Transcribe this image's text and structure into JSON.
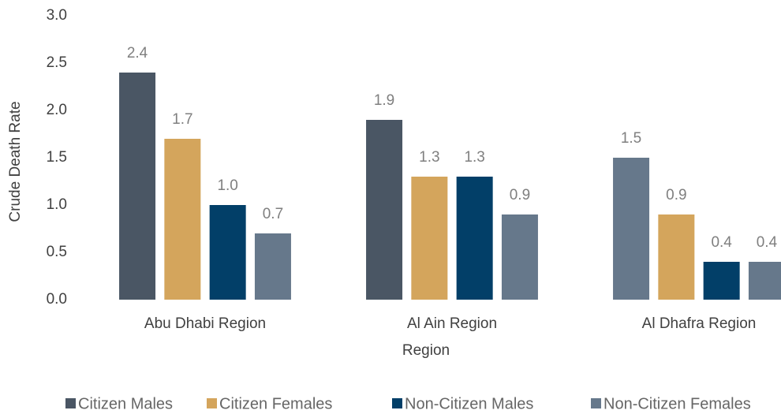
{
  "chart_data": {
    "type": "bar",
    "x_label": "Region",
    "y_label": "Crude Death Rate",
    "categories": [
      "Abu Dhabi Region",
      "Al Ain Region",
      "Al Dhafra Region"
    ],
    "series": [
      {
        "name": "Citizen Males",
        "color": "#4a5664",
        "colors": [
          "#4a5664",
          "#4a5664",
          "#66788b"
        ],
        "values": [
          2.4,
          1.9,
          1.5
        ],
        "value_labels": [
          "2.4",
          "1.9",
          "1.5"
        ]
      },
      {
        "name": "Citizen Females",
        "color": "#d4a55c",
        "values": [
          1.7,
          1.3,
          0.9
        ],
        "value_labels": [
          "1.7",
          "1.3",
          "0.9"
        ]
      },
      {
        "name": "Non-Citizen Males",
        "color": "#023f68",
        "values": [
          1.0,
          1.3,
          0.4
        ],
        "value_labels": [
          "1.0",
          "1.3",
          "0.4"
        ]
      },
      {
        "name": "Non-Citizen Females",
        "color": "#66788b",
        "values": [
          0.7,
          0.9,
          0.4
        ],
        "value_labels": [
          "0.7",
          "0.9",
          "0.4"
        ]
      }
    ],
    "ylim": [
      0,
      3
    ],
    "yticks": [
      {
        "value": 0,
        "label": "0.0"
      },
      {
        "value": 0.5,
        "label": "0.5"
      },
      {
        "value": 1,
        "label": "1.0"
      },
      {
        "value": 1.5,
        "label": "1.5"
      },
      {
        "value": 2,
        "label": "2.0"
      },
      {
        "value": 2.5,
        "label": "2.5"
      },
      {
        "value": 3,
        "label": "3.0"
      }
    ],
    "grid": false,
    "legend": "bottom"
  }
}
